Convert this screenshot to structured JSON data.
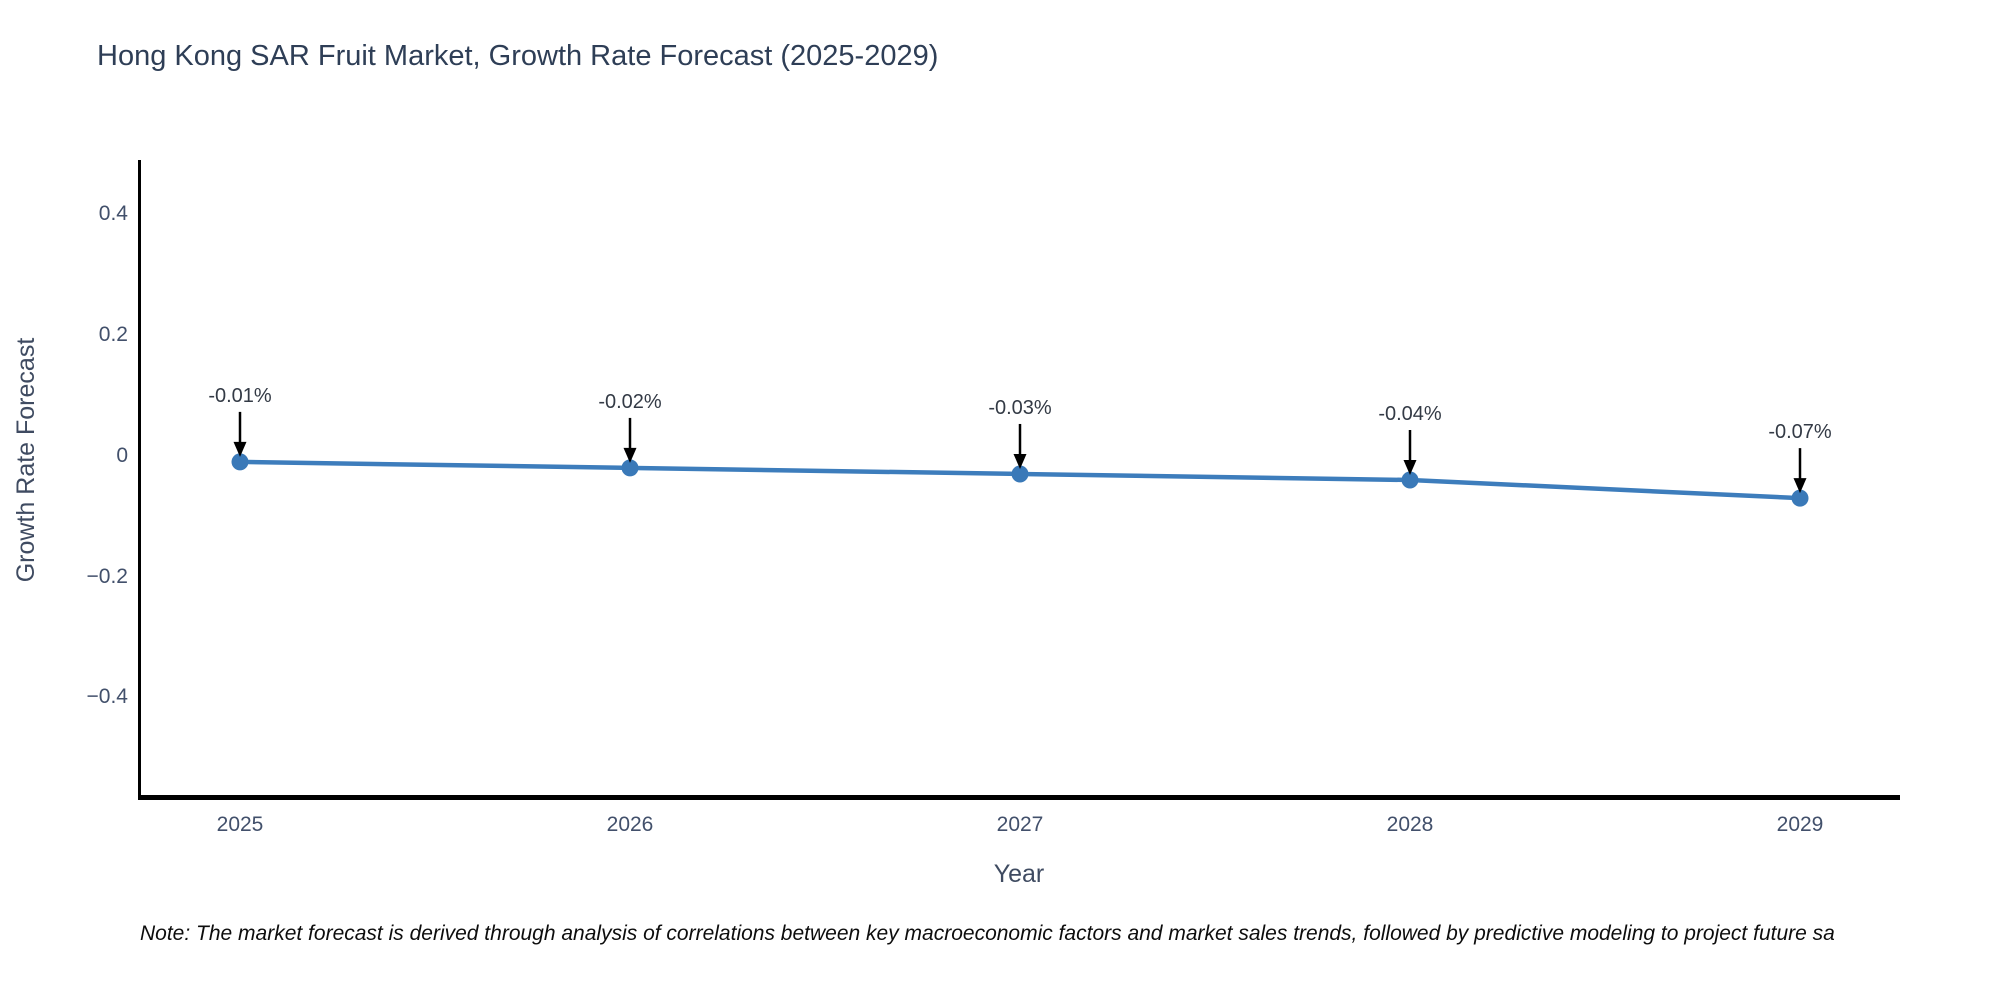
{
  "chart_data": {
    "type": "line",
    "title": "Hong Kong SAR Fruit Market, Growth Rate Forecast (2025-2029)",
    "xlabel": "Year",
    "ylabel": "Growth Rate Forecast",
    "categories": [
      "2025",
      "2026",
      "2027",
      "2028",
      "2029"
    ],
    "series": [
      {
        "name": "Growth Rate Forecast",
        "values": [
          -0.01,
          -0.02,
          -0.03,
          -0.04,
          -0.07
        ]
      }
    ],
    "point_annotations": [
      "-0.01%",
      "-0.02%",
      "-0.03%",
      "-0.04%",
      "-0.07%"
    ],
    "y_ticks": [
      0.4,
      0.2,
      0,
      -0.2,
      -0.4
    ],
    "y_tick_labels": [
      "0.4",
      "0.2",
      "0",
      "−0.2",
      "−0.4"
    ],
    "ylim": [
      -0.57,
      0.49
    ],
    "grid": false,
    "legend_position": "none",
    "colors": {
      "line": "#3d7dbc",
      "marker": "#3a79b8",
      "annotation_arrow": "#000000",
      "axis_line": "#000000",
      "title_text": "#2e3e56",
      "tick_text": "#42506b"
    }
  },
  "footnote": {
    "text": "Note: The market forecast is derived through analysis of correlations between key macroeconomic factors and market sales trends, followed by predictive modeling to project future sa"
  }
}
